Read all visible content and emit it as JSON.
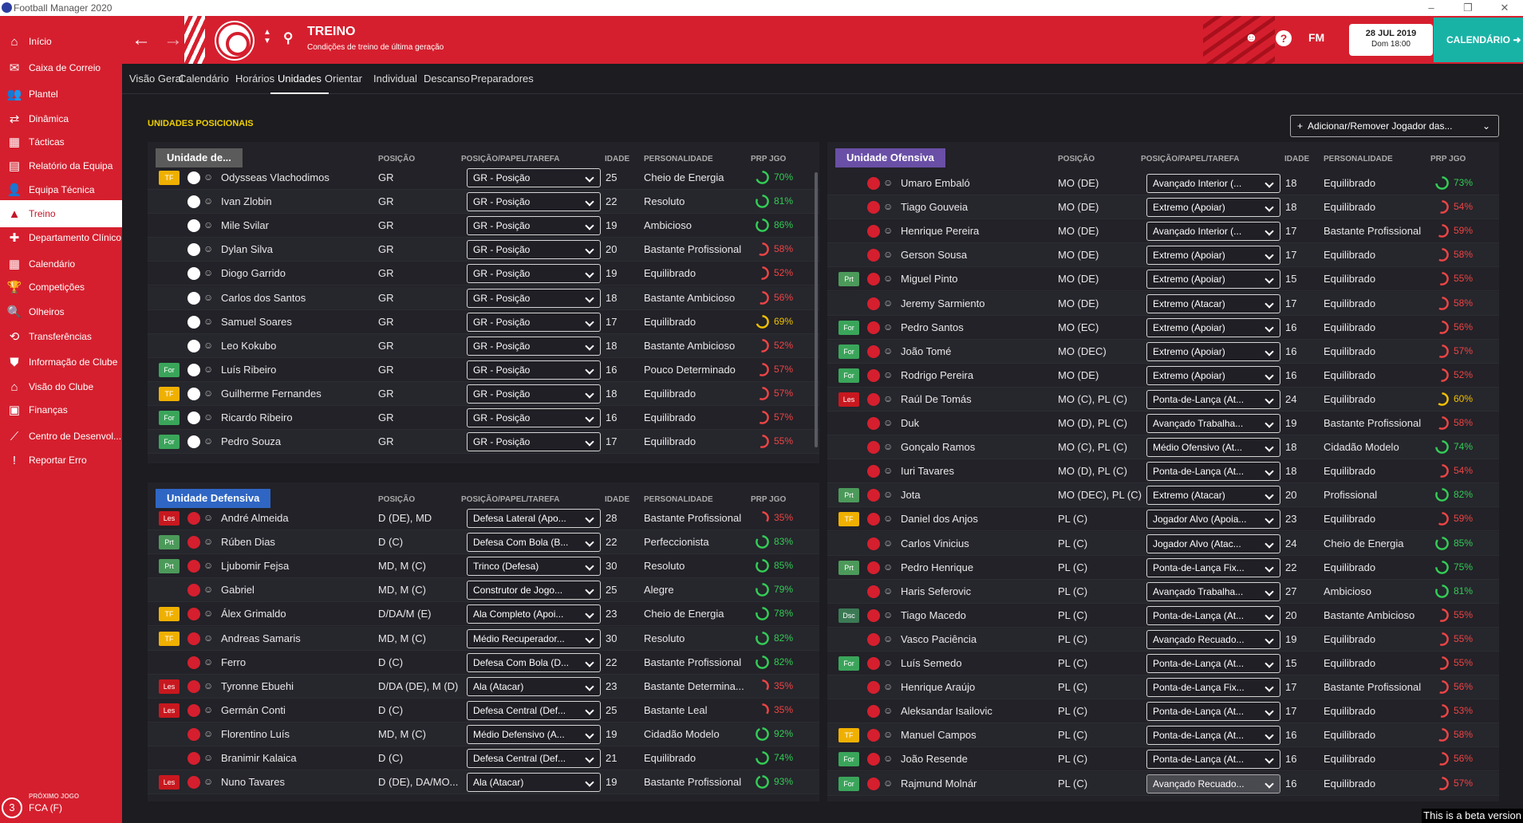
{
  "app": {
    "title": "Football Manager 2020"
  },
  "sidebar": {
    "items": [
      {
        "label": "Início",
        "icon": "home-icon",
        "glyph": "⌂"
      },
      {
        "label": "Caixa de Correio",
        "icon": "mail-icon",
        "glyph": "✉"
      },
      {
        "label": "Plantel",
        "icon": "squad-icon",
        "glyph": "👥"
      },
      {
        "label": "Dinâmica",
        "icon": "dynamics-icon",
        "glyph": "⇄"
      },
      {
        "label": "Tácticas",
        "icon": "tactics-icon",
        "glyph": "▦"
      },
      {
        "label": "Relatório da Equipa",
        "icon": "report-icon",
        "glyph": "▤"
      },
      {
        "label": "Equipa Técnica",
        "icon": "staff-icon",
        "glyph": "👤"
      },
      {
        "label": "Treino",
        "icon": "training-icon",
        "glyph": "▲"
      },
      {
        "label": "Departamento Clínico",
        "icon": "medical-icon",
        "glyph": "✚"
      },
      {
        "label": "Calendário",
        "icon": "calendar-icon",
        "glyph": "▦"
      },
      {
        "label": "Competições",
        "icon": "trophy-icon",
        "glyph": "🏆"
      },
      {
        "label": "Olheiros",
        "icon": "scouting-icon",
        "glyph": "🔍"
      },
      {
        "label": "Transferências",
        "icon": "transfers-icon",
        "glyph": "⟲"
      },
      {
        "label": "Informação de Clube",
        "icon": "club-info-icon",
        "glyph": "⛊"
      },
      {
        "label": "Visão do Clube",
        "icon": "club-vision-icon",
        "glyph": "⌂"
      },
      {
        "label": "Finanças",
        "icon": "finances-icon",
        "glyph": "▣"
      },
      {
        "label": "Centro de Desenvol...",
        "icon": "development-icon",
        "glyph": "⟋"
      },
      {
        "label": "Reportar Erro",
        "icon": "bug-report-icon",
        "glyph": "!"
      }
    ],
    "next_match": {
      "label": "PRÓXIMO JOGO",
      "value": "FCA (F)",
      "number": "3"
    }
  },
  "header": {
    "title": "TREINO",
    "subtitle": "Condições de treino de última geração",
    "date": "28 JUL 2019",
    "day": "Dom 18:00",
    "calendar": "CALENDÁRIO",
    "fm": "FM",
    "help": "?"
  },
  "tabs": [
    "Visão Geral",
    "Calendário",
    "Horários",
    "Unidades",
    "Orientar",
    "Individual",
    "Descanso",
    "Preparadores"
  ],
  "active_tab": 3,
  "section_title": "UNIDADES POSICIONAIS",
  "add_button": "Adicionar/Remover Jogador das...",
  "columns": {
    "pos": "POSIÇÃO",
    "role": "POSIÇÃO/PAPEL/TAREFA",
    "age": "IDADE",
    "pers": "PERSONALIDADE",
    "prp": "PRP JGO"
  },
  "colors": {
    "good": "#33cc55",
    "mid": "#f0c000",
    "bad": "#ee4444",
    "badge_tf": "#f0b000",
    "badge_for": "#3aa55a",
    "badge_prt": "#4c9a5a",
    "badge_les": "#c8181f",
    "badge_dsc": "#3b7a54"
  },
  "panels": [
    {
      "title": "Unidade de...",
      "title_color": "#5b5b5b",
      "kit": "gk",
      "rows": [
        {
          "badge": "TF",
          "name": "Odysseas Vlachodimos",
          "pos": "GR",
          "role": "GR - Posição",
          "age": "25",
          "pers": "Cheio de Energia",
          "prp": "70%",
          "prp_value": 70
        },
        {
          "badge": "",
          "name": "Ivan Zlobin",
          "pos": "GR",
          "role": "GR - Posição",
          "age": "22",
          "pers": "Resoluto",
          "prp": "81%",
          "prp_value": 81
        },
        {
          "badge": "",
          "name": "Mile Svilar",
          "pos": "GR",
          "role": "GR - Posição",
          "age": "19",
          "pers": "Ambicioso",
          "prp": "86%",
          "prp_value": 86
        },
        {
          "badge": "",
          "name": "Dylan Silva",
          "pos": "GR",
          "role": "GR - Posição",
          "age": "20",
          "pers": "Bastante Profissional",
          "prp": "58%",
          "prp_value": 58
        },
        {
          "badge": "",
          "name": "Diogo Garrido",
          "pos": "GR",
          "role": "GR - Posição",
          "age": "19",
          "pers": "Equilibrado",
          "prp": "52%",
          "prp_value": 52
        },
        {
          "badge": "",
          "name": "Carlos dos Santos",
          "pos": "GR",
          "role": "GR - Posição",
          "age": "18",
          "pers": "Bastante Ambicioso",
          "prp": "56%",
          "prp_value": 56
        },
        {
          "badge": "",
          "name": "Samuel Soares",
          "pos": "GR",
          "role": "GR - Posição",
          "age": "17",
          "pers": "Equilibrado",
          "prp": "69%",
          "prp_value": 69
        },
        {
          "badge": "",
          "name": "Leo Kokubo",
          "pos": "GR",
          "role": "GR - Posição",
          "age": "18",
          "pers": "Bastante Ambicioso",
          "prp": "52%",
          "prp_value": 52
        },
        {
          "badge": "For",
          "name": "Luís Ribeiro",
          "pos": "GR",
          "role": "GR - Posição",
          "age": "16",
          "pers": "Pouco Determinado",
          "prp": "57%",
          "prp_value": 57
        },
        {
          "badge": "TF",
          "name": "Guilherme Fernandes",
          "pos": "GR",
          "role": "GR - Posição",
          "age": "18",
          "pers": "Equilibrado",
          "prp": "57%",
          "prp_value": 57
        },
        {
          "badge": "For",
          "name": "Ricardo Ribeiro",
          "pos": "GR",
          "role": "GR - Posição",
          "age": "16",
          "pers": "Equilibrado",
          "prp": "57%",
          "prp_value": 57
        },
        {
          "badge": "For",
          "name": "Pedro Souza",
          "pos": "GR",
          "role": "GR - Posição",
          "age": "17",
          "pers": "Equilibrado",
          "prp": "55%",
          "prp_value": 55
        }
      ]
    },
    {
      "title": "Unidade Defensiva",
      "title_color": "#2f66c4",
      "kit": "field",
      "rows": [
        {
          "badge": "Les",
          "name": "André Almeida",
          "pos": "D (DE), MD",
          "role": "Defesa Lateral (Apo...",
          "age": "28",
          "pers": "Bastante Profissional",
          "prp": "35%",
          "prp_value": 35
        },
        {
          "badge": "Prt",
          "name": "Rúben Dias",
          "pos": "D (C)",
          "role": "Defesa Com Bola (B...",
          "age": "22",
          "pers": "Perfeccionista",
          "prp": "83%",
          "prp_value": 83
        },
        {
          "badge": "Prt",
          "name": "Ljubomir Fejsa",
          "pos": "MD, M (C)",
          "role": "Trinco (Defesa)",
          "age": "30",
          "pers": "Resoluto",
          "prp": "85%",
          "prp_value": 85
        },
        {
          "badge": "",
          "name": "Gabriel",
          "pos": "MD, M (C)",
          "role": "Construtor de Jogo...",
          "age": "25",
          "pers": "Alegre",
          "prp": "79%",
          "prp_value": 79
        },
        {
          "badge": "TF",
          "name": "Álex Grimaldo",
          "pos": "D/DA/M (E)",
          "role": "Ala Completo (Apoi...",
          "age": "23",
          "pers": "Cheio de Energia",
          "prp": "78%",
          "prp_value": 78
        },
        {
          "badge": "TF",
          "name": "Andreas Samaris",
          "pos": "MD, M (C)",
          "role": "Médio Recuperador...",
          "age": "30",
          "pers": "Resoluto",
          "prp": "82%",
          "prp_value": 82
        },
        {
          "badge": "",
          "name": "Ferro",
          "pos": "D (C)",
          "role": "Defesa Com Bola (D...",
          "age": "22",
          "pers": "Bastante Profissional",
          "prp": "82%",
          "prp_value": 82
        },
        {
          "badge": "Les",
          "name": "Tyronne Ebuehi",
          "pos": "D/DA (DE), M (D)",
          "role": "Ala (Atacar)",
          "age": "23",
          "pers": "Bastante Determina...",
          "prp": "35%",
          "prp_value": 35
        },
        {
          "badge": "Les",
          "name": "Germán Conti",
          "pos": "D (C)",
          "role": "Defesa Central (Def...",
          "age": "25",
          "pers": "Bastante Leal",
          "prp": "35%",
          "prp_value": 35
        },
        {
          "badge": "",
          "name": "Florentino Luís",
          "pos": "MD, M (C)",
          "role": "Médio Defensivo (A...",
          "age": "19",
          "pers": "Cidadão Modelo",
          "prp": "92%",
          "prp_value": 92
        },
        {
          "badge": "",
          "name": "Branimir Kalaica",
          "pos": "D (C)",
          "role": "Defesa Central (Def...",
          "age": "21",
          "pers": "Equilibrado",
          "prp": "74%",
          "prp_value": 74
        },
        {
          "badge": "Les",
          "name": "Nuno Tavares",
          "pos": "D (DE), DA/MO...",
          "role": "Ala (Atacar)",
          "age": "19",
          "pers": "Bastante Profissional",
          "prp": "93%",
          "prp_value": 93
        }
      ]
    },
    {
      "title": "Unidade Ofensiva",
      "title_color": "#6a4fa6",
      "kit": "field",
      "rows": [
        {
          "badge": "",
          "name": "Umaro Embaló",
          "pos": "MO (DE)",
          "role": "Avançado Interior (...",
          "age": "18",
          "pers": "Equilibrado",
          "prp": "73%",
          "prp_value": 73
        },
        {
          "badge": "",
          "name": "Tiago Gouveia",
          "pos": "MO (DE)",
          "role": "Extremo (Apoiar)",
          "age": "18",
          "pers": "Equilibrado",
          "prp": "54%",
          "prp_value": 54
        },
        {
          "badge": "",
          "name": "Henrique Pereira",
          "pos": "MO (DE)",
          "role": "Avançado Interior (...",
          "age": "17",
          "pers": "Bastante Profissional",
          "prp": "59%",
          "prp_value": 59
        },
        {
          "badge": "",
          "name": "Gerson Sousa",
          "pos": "MO (DE)",
          "role": "Extremo (Apoiar)",
          "age": "17",
          "pers": "Equilibrado",
          "prp": "58%",
          "prp_value": 58
        },
        {
          "badge": "Prt",
          "name": "Miguel Pinto",
          "pos": "MO (DE)",
          "role": "Extremo (Apoiar)",
          "age": "15",
          "pers": "Equilibrado",
          "prp": "55%",
          "prp_value": 55
        },
        {
          "badge": "",
          "name": "Jeremy Sarmiento",
          "pos": "MO (DE)",
          "role": "Extremo (Atacar)",
          "age": "17",
          "pers": "Equilibrado",
          "prp": "58%",
          "prp_value": 58
        },
        {
          "badge": "For",
          "name": "Pedro Santos",
          "pos": "MO (EC)",
          "role": "Extremo (Apoiar)",
          "age": "16",
          "pers": "Equilibrado",
          "prp": "56%",
          "prp_value": 56
        },
        {
          "badge": "For",
          "name": "João Tomé",
          "pos": "MO (DEC)",
          "role": "Extremo (Apoiar)",
          "age": "16",
          "pers": "Equilibrado",
          "prp": "57%",
          "prp_value": 57
        },
        {
          "badge": "For",
          "name": "Rodrigo Pereira",
          "pos": "MO (DE)",
          "role": "Extremo (Apoiar)",
          "age": "16",
          "pers": "Equilibrado",
          "prp": "52%",
          "prp_value": 52
        },
        {
          "badge": "Les",
          "name": "Raúl De Tomás",
          "pos": "MO (C), PL (C)",
          "role": "Ponta-de-Lança (At...",
          "age": "24",
          "pers": "Equilibrado",
          "prp": "60%",
          "prp_value": 60
        },
        {
          "badge": "",
          "name": "Duk",
          "pos": "MO (D), PL (C)",
          "role": "Avançado Trabalha...",
          "age": "19",
          "pers": "Bastante Profissional",
          "prp": "58%",
          "prp_value": 58
        },
        {
          "badge": "",
          "name": "Gonçalo Ramos",
          "pos": "MO (C), PL (C)",
          "role": "Médio Ofensivo (At...",
          "age": "18",
          "pers": "Cidadão Modelo",
          "prp": "74%",
          "prp_value": 74
        },
        {
          "badge": "",
          "name": "Iuri Tavares",
          "pos": "MO (D), PL (C)",
          "role": "Ponta-de-Lança (At...",
          "age": "18",
          "pers": "Equilibrado",
          "prp": "54%",
          "prp_value": 54
        },
        {
          "badge": "Prt",
          "name": "Jota",
          "pos": "MO (DEC), PL (C)",
          "role": "Extremo (Atacar)",
          "age": "20",
          "pers": "Profissional",
          "prp": "82%",
          "prp_value": 82
        },
        {
          "badge": "TF",
          "name": "Daniel dos Anjos",
          "pos": "PL (C)",
          "role": "Jogador Alvo (Apoia...",
          "age": "23",
          "pers": "Equilibrado",
          "prp": "59%",
          "prp_value": 59
        },
        {
          "badge": "",
          "name": "Carlos Vinicius",
          "pos": "PL (C)",
          "role": "Jogador Alvo (Atac...",
          "age": "24",
          "pers": "Cheio de Energia",
          "prp": "85%",
          "prp_value": 85
        },
        {
          "badge": "Prt",
          "name": "Pedro Henrique",
          "pos": "PL (C)",
          "role": "Ponta-de-Lança Fix...",
          "age": "22",
          "pers": "Equilibrado",
          "prp": "75%",
          "prp_value": 75
        },
        {
          "badge": "",
          "name": "Haris Seferovic",
          "pos": "PL (C)",
          "role": "Avançado Trabalha...",
          "age": "27",
          "pers": "Ambicioso",
          "prp": "81%",
          "prp_value": 81
        },
        {
          "badge": "Dsc",
          "name": "Tiago Macedo",
          "pos": "PL (C)",
          "role": "Ponta-de-Lança (At...",
          "age": "20",
          "pers": "Bastante Ambicioso",
          "prp": "55%",
          "prp_value": 55
        },
        {
          "badge": "",
          "name": "Vasco Paciência",
          "pos": "PL (C)",
          "role": "Avançado Recuado...",
          "age": "19",
          "pers": "Equilibrado",
          "prp": "55%",
          "prp_value": 55
        },
        {
          "badge": "For",
          "name": "Luís Semedo",
          "pos": "PL (C)",
          "role": "Ponta-de-Lança (At...",
          "age": "15",
          "pers": "Equilibrado",
          "prp": "55%",
          "prp_value": 55
        },
        {
          "badge": "",
          "name": "Henrique Araújo",
          "pos": "PL (C)",
          "role": "Ponta-de-Lança Fix...",
          "age": "17",
          "pers": "Bastante Profissional",
          "prp": "56%",
          "prp_value": 56
        },
        {
          "badge": "",
          "name": "Aleksandar Isailovic",
          "pos": "PL (C)",
          "role": "Ponta-de-Lança (At...",
          "age": "17",
          "pers": "Equilibrado",
          "prp": "53%",
          "prp_value": 53
        },
        {
          "badge": "TF",
          "name": "Manuel Campos",
          "pos": "PL (C)",
          "role": "Ponta-de-Lança (At...",
          "age": "16",
          "pers": "Equilibrado",
          "prp": "58%",
          "prp_value": 58
        },
        {
          "badge": "For",
          "name": "João Resende",
          "pos": "PL (C)",
          "role": "Ponta-de-Lança (At...",
          "age": "16",
          "pers": "Equilibrado",
          "prp": "56%",
          "prp_value": 56
        },
        {
          "badge": "For",
          "name": "Rajmund Molnár",
          "pos": "PL (C)",
          "role": "Avançado Recuado...",
          "age": "16",
          "pers": "Equilibrado",
          "prp": "57%",
          "prp_value": 57
        }
      ]
    }
  ],
  "beta": "This is a beta version"
}
